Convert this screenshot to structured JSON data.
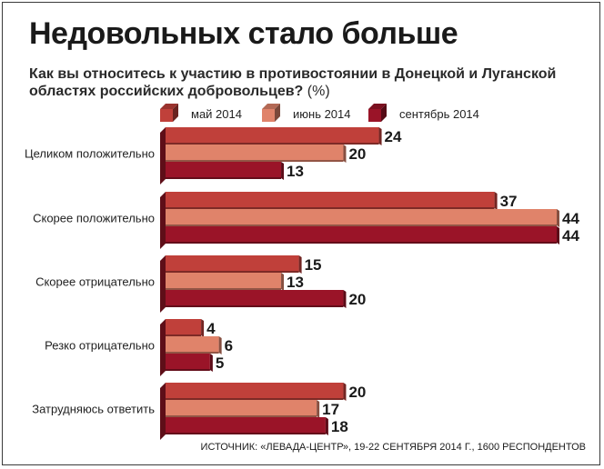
{
  "title": "Недовольных стало больше",
  "subtitle": "Как вы относитесь к участию в противостоянии в Донецкой и Луганской областях российских добровольцев?",
  "unit": "(%)",
  "source": "ИСТОЧНИК: «ЛЕВАДА-ЦЕНТР», 19-22 СЕНТЯБРЯ 2014 Г., 1600 РЕСПОНДЕНТОВ",
  "colors": {
    "may": "#c0403a",
    "june": "#e0836a",
    "september": "#9a1428"
  },
  "chart_data": {
    "type": "bar",
    "orientation": "horizontal",
    "title": "Недовольных стало больше",
    "categories": [
      "Целиком положительно",
      "Скорее положительно",
      "Скорее отрицательно",
      "Резко отрицательно",
      "Затрудняюсь ответить"
    ],
    "series": [
      {
        "name": "май 2014",
        "values": [
          24,
          37,
          15,
          4,
          20
        ]
      },
      {
        "name": "июнь 2014",
        "values": [
          20,
          44,
          13,
          6,
          17
        ]
      },
      {
        "name": "сентябрь 2014",
        "values": [
          13,
          44,
          20,
          5,
          18
        ]
      }
    ],
    "xlim": [
      0,
      44
    ],
    "legend_position": "top",
    "grid": false
  }
}
